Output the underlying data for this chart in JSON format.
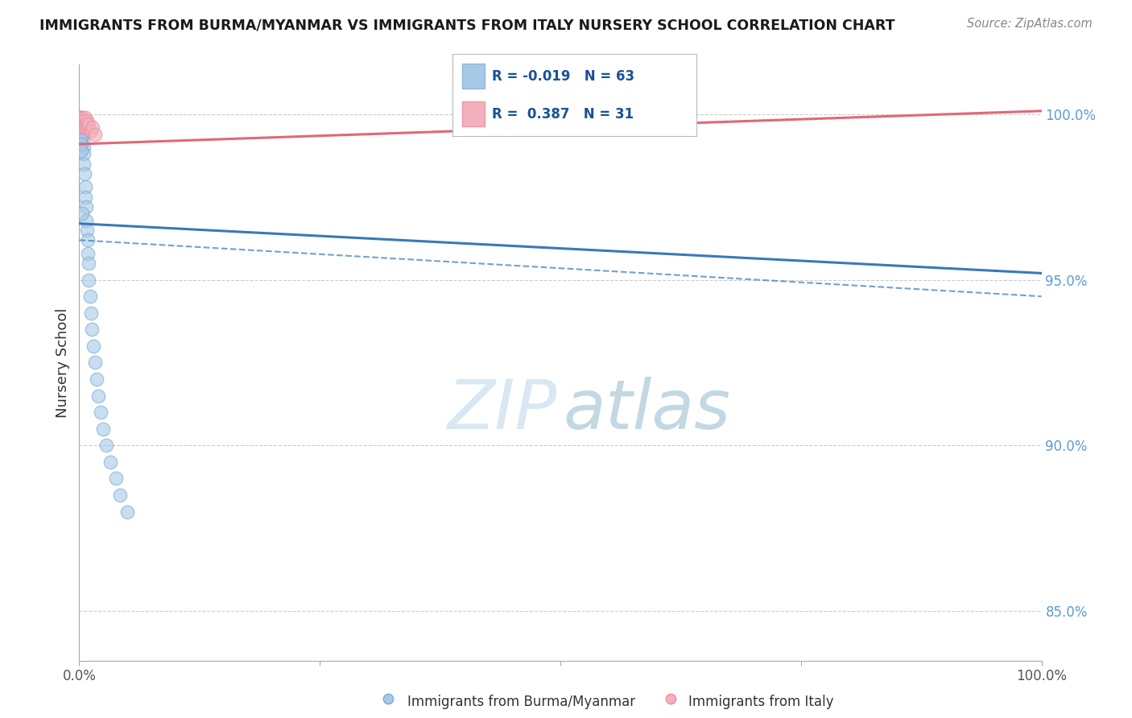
{
  "title": "IMMIGRANTS FROM BURMA/MYANMAR VS IMMIGRANTS FROM ITALY NURSERY SCHOOL CORRELATION CHART",
  "source": "Source: ZipAtlas.com",
  "ylabel": "Nursery School",
  "y_ticks": [
    85.0,
    90.0,
    95.0,
    100.0
  ],
  "y_tick_labels": [
    "85.0%",
    "90.0%",
    "95.0%",
    "100.0%"
  ],
  "legend_label_blue": "Immigrants from Burma/Myanmar",
  "legend_label_pink": "Immigrants from Italy",
  "R_blue": -0.019,
  "N_blue": 63,
  "R_pink": 0.387,
  "N_pink": 31,
  "blue_scatter_color": "#a8c8e8",
  "blue_edge_color": "#7aaad0",
  "pink_scatter_color": "#f4b0bc",
  "pink_edge_color": "#e890a0",
  "blue_line_color": "#3a78b8",
  "pink_line_color": "#e06878",
  "grid_color": "#cccccc",
  "background_color": "#ffffff",
  "xlim": [
    0,
    100
  ],
  "ylim": [
    83.5,
    101.5
  ],
  "blue_trend_y0": 96.7,
  "blue_trend_y1": 95.2,
  "blue_ci_lower_y0": 96.2,
  "blue_ci_lower_y1": 94.5,
  "pink_trend_y0": 99.1,
  "pink_trend_y1": 100.1,
  "blue_x": [
    0.05,
    0.06,
    0.07,
    0.08,
    0.09,
    0.1,
    0.11,
    0.12,
    0.13,
    0.14,
    0.15,
    0.16,
    0.17,
    0.18,
    0.19,
    0.2,
    0.21,
    0.22,
    0.23,
    0.24,
    0.25,
    0.26,
    0.27,
    0.28,
    0.29,
    0.3,
    0.32,
    0.34,
    0.36,
    0.38,
    0.4,
    0.42,
    0.45,
    0.48,
    0.5,
    0.55,
    0.6,
    0.65,
    0.7,
    0.75,
    0.8,
    0.85,
    0.9,
    0.95,
    1.0,
    1.1,
    1.2,
    1.3,
    1.5,
    1.6,
    1.8,
    2.0,
    2.2,
    2.5,
    2.8,
    3.2,
    3.8,
    4.2,
    5.0,
    0.13,
    0.18,
    0.22,
    0.3
  ],
  "blue_y": [
    99.6,
    99.8,
    99.5,
    99.7,
    99.9,
    99.4,
    99.6,
    99.8,
    99.5,
    99.7,
    99.6,
    99.5,
    99.7,
    99.4,
    99.8,
    99.6,
    99.5,
    99.7,
    99.4,
    99.8,
    99.6,
    99.5,
    99.7,
    99.4,
    99.8,
    99.6,
    99.5,
    99.7,
    99.4,
    99.8,
    99.2,
    99.5,
    99.0,
    98.8,
    98.5,
    98.2,
    97.8,
    97.5,
    97.2,
    96.8,
    96.5,
    96.2,
    95.8,
    95.5,
    95.0,
    94.5,
    94.0,
    93.5,
    93.0,
    92.5,
    92.0,
    91.5,
    91.0,
    90.5,
    90.0,
    89.5,
    89.0,
    88.5,
    88.0,
    99.3,
    99.1,
    98.9,
    97.0
  ],
  "pink_x": [
    0.02,
    0.04,
    0.06,
    0.08,
    0.1,
    0.12,
    0.14,
    0.16,
    0.18,
    0.2,
    0.22,
    0.24,
    0.26,
    0.28,
    0.3,
    0.32,
    0.35,
    0.38,
    0.4,
    0.45,
    0.5,
    0.55,
    0.6,
    0.65,
    0.7,
    0.8,
    0.9,
    1.0,
    1.2,
    1.4,
    1.6
  ],
  "pink_y": [
    99.8,
    99.9,
    99.7,
    99.8,
    99.9,
    99.7,
    99.8,
    99.9,
    99.7,
    99.8,
    99.9,
    99.7,
    99.8,
    99.9,
    99.7,
    99.8,
    99.6,
    99.7,
    99.8,
    99.6,
    99.7,
    99.8,
    99.9,
    99.6,
    99.7,
    99.8,
    99.6,
    99.7,
    99.5,
    99.6,
    99.4
  ]
}
